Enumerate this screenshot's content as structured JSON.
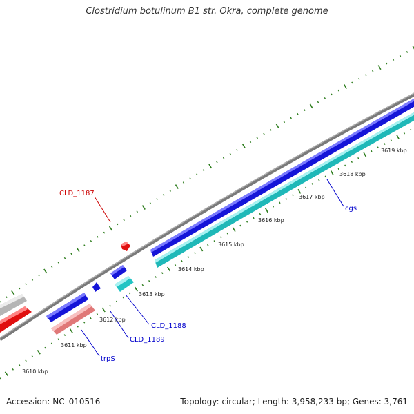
{
  "title": "Clostridium botulinum B1 str. Okra, complete genome",
  "footer": {
    "accession": "Accession: NC_010516",
    "summary": "Topology: circular; Length: 3,958,233 bp; Genes: 3,761"
  },
  "ticks": [
    {
      "label": "3610 kbp"
    },
    {
      "label": "3611 kbp"
    },
    {
      "label": "3612 kbp"
    },
    {
      "label": "3613 kbp"
    },
    {
      "label": "3614 kbp"
    },
    {
      "label": "3615 kbp"
    },
    {
      "label": "3616 kbp"
    },
    {
      "label": "3617 kbp"
    },
    {
      "label": "3618 kbp"
    },
    {
      "label": "3619 kbp"
    }
  ],
  "gene_labels": [
    {
      "name": "CLD_1187",
      "color": "#cc0000"
    },
    {
      "name": "CLD_1188",
      "color": "#0000cc"
    },
    {
      "name": "CLD_1189",
      "color": "#0000cc"
    },
    {
      "name": "trpS",
      "color": "#0000cc"
    },
    {
      "name": "cgs",
      "color": "#0000cc"
    }
  ],
  "colors": {
    "backbone": "#808080",
    "tick": "#2e7d1e",
    "forward_cds": "#1a1ae0",
    "forward_cds_top": "#8080ff",
    "reverse_cds": "#22c4c4",
    "reverse_cds_top": "#a0f0f0",
    "red_gene": "#e01010",
    "red_gene_top": "#ff8080",
    "pink_gene": "#e88080",
    "pink_gene_top": "#f8c0c0",
    "gray_gene": "#b8b8b8",
    "gray_gene_top": "#e8e8e8"
  }
}
